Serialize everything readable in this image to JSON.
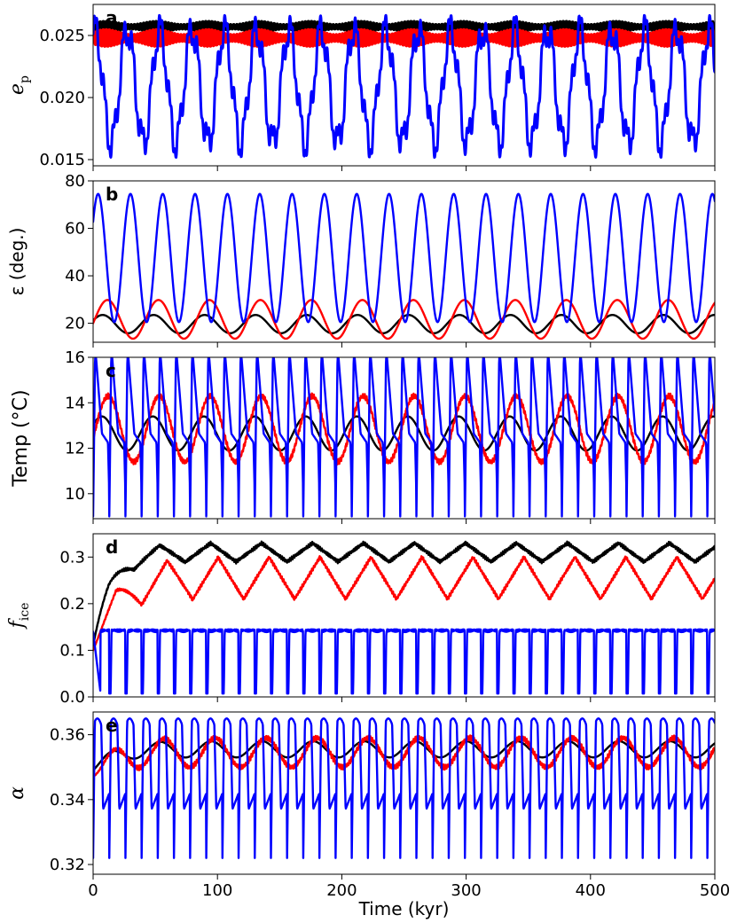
{
  "chart_data": [
    {
      "type": "line",
      "panel": "a",
      "ylabel": "e",
      "ylabel_sub": "p",
      "ylim": [
        0.0145,
        0.0275
      ],
      "yticks": [
        0.015,
        0.02,
        0.025
      ],
      "ytick_labels": [
        "0.015",
        "0.020",
        "0.025"
      ],
      "xlim": [
        0,
        500
      ],
      "series": [
        {
          "color": "#000000",
          "mean": 0.0257,
          "amplitude": 0.00045,
          "period": 2.5,
          "minimum": 0.0253,
          "maximum": 0.0263
        },
        {
          "color": "#ff0000",
          "mean": 0.0248,
          "amplitude": 0.0007,
          "period": 2.5,
          "minimum": 0.0238,
          "maximum": 0.0262
        },
        {
          "color": "#0000ff",
          "period": 26,
          "minimum": 0.015,
          "maximum": 0.0268
        }
      ]
    },
    {
      "type": "line",
      "panel": "b",
      "ylabel": "ε (deg.)",
      "ylim": [
        12,
        80
      ],
      "yticks": [
        20,
        40,
        60,
        80
      ],
      "ytick_labels": [
        "20",
        "40",
        "60",
        "80"
      ],
      "xlim": [
        0,
        500
      ],
      "series": [
        {
          "color": "#000000",
          "period": 41,
          "minimum": 15.8,
          "maximum": 23.5
        },
        {
          "color": "#ff0000",
          "period": 41,
          "minimum": 13.5,
          "maximum": 29.8
        },
        {
          "color": "#0000ff",
          "period": 26,
          "minimum": 20.5,
          "maximum": 74.5
        }
      ]
    },
    {
      "type": "line",
      "panel": "c",
      "ylabel": "Temp (°C)",
      "ylim": [
        8.9,
        16
      ],
      "yticks": [
        10,
        12,
        14,
        16
      ],
      "ytick_labels": [
        "10",
        "12",
        "14",
        "16"
      ],
      "xlim": [
        0,
        500
      ],
      "series": [
        {
          "color": "#000000",
          "period": 41,
          "minimum": 11.9,
          "maximum": 13.4
        },
        {
          "color": "#ff0000",
          "period": 41,
          "minimum": 11.4,
          "maximum": 14.3
        },
        {
          "color": "#0000ff",
          "period": 13,
          "minimum": 9.0,
          "maximum": 16.0
        }
      ]
    },
    {
      "type": "line",
      "panel": "d",
      "ylabel": "f",
      "ylabel_sub": "ice",
      "ylim": [
        0,
        0.35
      ],
      "yticks": [
        0.0,
        0.1,
        0.2,
        0.3
      ],
      "ytick_labels": [
        "0.0",
        "0.1",
        "0.2",
        "0.3"
      ],
      "xlim": [
        0,
        500
      ],
      "series": [
        {
          "color": "#000000",
          "start": 0.11,
          "period": 41,
          "minimum": 0.29,
          "maximum": 0.33
        },
        {
          "color": "#ff0000",
          "start": 0.1,
          "period": 41,
          "minimum": 0.21,
          "maximum": 0.3
        },
        {
          "color": "#0000ff",
          "period": 13,
          "minimum": 0.0,
          "maximum": 0.145
        }
      ]
    },
    {
      "type": "line",
      "panel": "e",
      "ylabel": "α",
      "ylim": [
        0.317,
        0.367
      ],
      "yticks": [
        0.32,
        0.34,
        0.36
      ],
      "ytick_labels": [
        "0.32",
        "0.34",
        "0.36"
      ],
      "xlim": [
        0,
        500
      ],
      "xticks": [
        0,
        100,
        200,
        300,
        400,
        500
      ],
      "xtick_labels": [
        "0",
        "100",
        "200",
        "300",
        "400",
        "500"
      ],
      "xlabel": "Time (kyr)",
      "series": [
        {
          "color": "#000000",
          "start": 0.349,
          "period": 41,
          "minimum": 0.353,
          "maximum": 0.358
        },
        {
          "color": "#ff0000",
          "start": 0.347,
          "period": 41,
          "minimum": 0.35,
          "maximum": 0.359
        },
        {
          "color": "#0000ff",
          "period": 13,
          "minimum": 0.322,
          "maximum": 0.365
        }
      ]
    }
  ]
}
